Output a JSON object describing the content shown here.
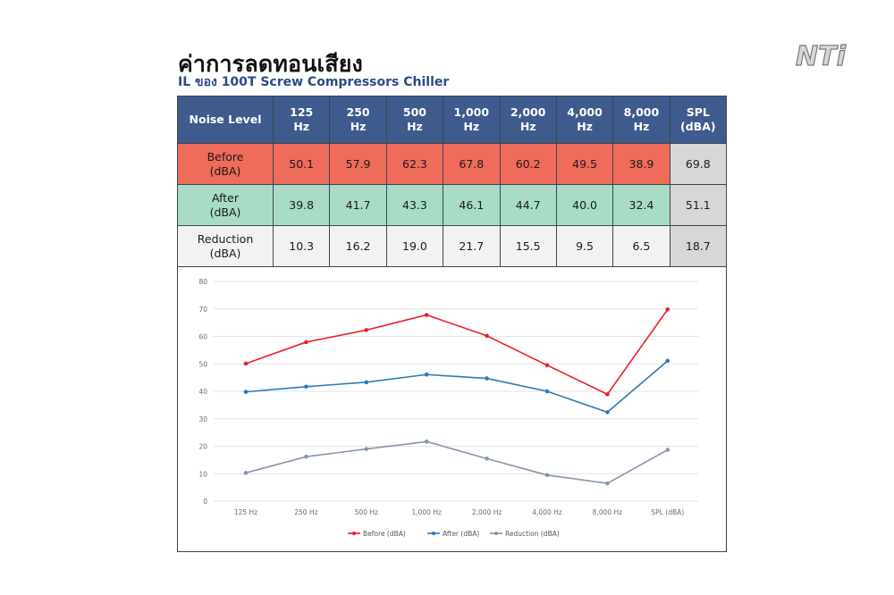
{
  "header": {
    "title": "ค่าการลดทอนเสียง",
    "subtitle": "IL ของ 100T Screw Compressors Chiller",
    "logo_text": "NTi"
  },
  "table": {
    "header_label": "Noise Level",
    "columns": [
      {
        "line1": "125",
        "line2": "Hz"
      },
      {
        "line1": "250",
        "line2": "Hz"
      },
      {
        "line1": "500",
        "line2": "Hz"
      },
      {
        "line1": "1,000",
        "line2": "Hz"
      },
      {
        "line1": "2,000",
        "line2": "Hz"
      },
      {
        "line1": "4,000",
        "line2": "Hz"
      },
      {
        "line1": "8,000",
        "line2": "Hz"
      },
      {
        "line1": "SPL",
        "line2": "(dBA)"
      }
    ],
    "rows": [
      {
        "label1": "Before",
        "label2": "(dBA)",
        "values": [
          "50.1",
          "57.9",
          "62.3",
          "67.8",
          "60.2",
          "49.5",
          "38.9",
          "69.8"
        ]
      },
      {
        "label1": "After",
        "label2": "(dBA)",
        "values": [
          "39.8",
          "41.7",
          "43.3",
          "46.1",
          "44.7",
          "40.0",
          "32.4",
          "51.1"
        ]
      },
      {
        "label1": "Reduction",
        "label2": "(dBA)",
        "values": [
          "10.3",
          "16.2",
          "19.0",
          "21.7",
          "15.5",
          "9.5",
          "6.5",
          "18.7"
        ]
      }
    ]
  },
  "chart_data": {
    "type": "line",
    "categories": [
      "125 Hz",
      "250 Hz",
      "500 Hz",
      "1,000 Hz",
      "2,000 Hz",
      "4,000 Hz",
      "8,000 Hz",
      "SPL (dBA)"
    ],
    "series": [
      {
        "name": "Before (dBA)",
        "color": "#e8202a",
        "values": [
          50.1,
          57.9,
          62.3,
          67.8,
          60.2,
          49.5,
          38.9,
          69.8
        ]
      },
      {
        "name": "After (dBA)",
        "color": "#2f78b5",
        "values": [
          39.8,
          41.7,
          43.3,
          46.1,
          44.7,
          40.0,
          32.4,
          51.1
        ]
      },
      {
        "name": "Reduction (dBA)",
        "color": "#8595ac",
        "values": [
          10.3,
          16.2,
          19.0,
          21.7,
          15.5,
          9.5,
          6.5,
          18.7
        ]
      }
    ],
    "ylim": [
      0,
      80
    ],
    "yticks": [
      "0",
      "10",
      "20",
      "30",
      "40",
      "50",
      "60",
      "70",
      "80"
    ],
    "grid": true,
    "legend": "bottom"
  }
}
